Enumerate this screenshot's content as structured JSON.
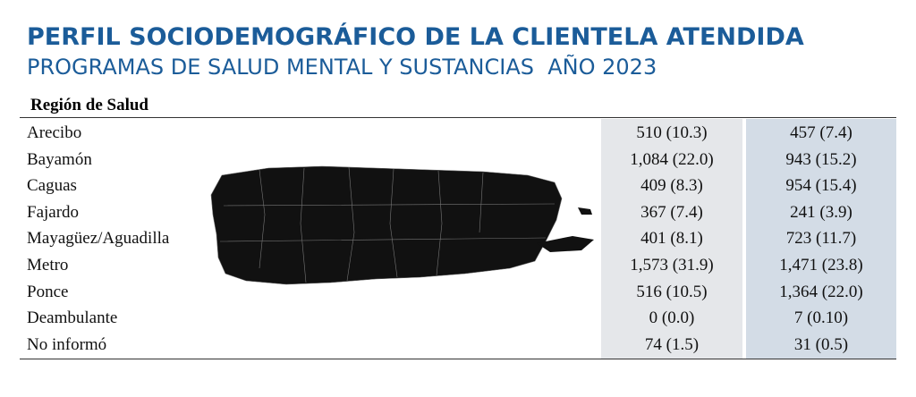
{
  "header": {
    "title": "PERFIL SOCIODEMOGRÁFICO DE LA CLIENTELA ATENDIDA",
    "subtitle": "PROGRAMAS DE SALUD MENTAL Y SUSTANCIAS  AÑO 2023"
  },
  "table": {
    "column_header": "Región de Salud",
    "rows": [
      [
        "Arecibo",
        "510 (10.3)",
        "457 (7.4)"
      ],
      [
        "Bayamón",
        "1,084 (22.0)",
        "943 (15.2)"
      ],
      [
        "Caguas",
        "409 (8.3)",
        "954 (15.4)"
      ],
      [
        "Fajardo",
        "367 (7.4)",
        "241 (3.9)"
      ],
      [
        "Mayagüez/Aguadilla",
        "401 (8.1)",
        "723 (11.7)"
      ],
      [
        "Metro",
        "1,573 (31.9)",
        "1,471 (23.8)"
      ],
      [
        "Ponce",
        "516 (10.5)",
        "1,364 (22.0)"
      ],
      [
        "Deambulante",
        "0 (0.0)",
        "7 (0.10)"
      ],
      [
        "No informó",
        "74 (1.5)",
        "31 (0.5)"
      ]
    ]
  }
}
